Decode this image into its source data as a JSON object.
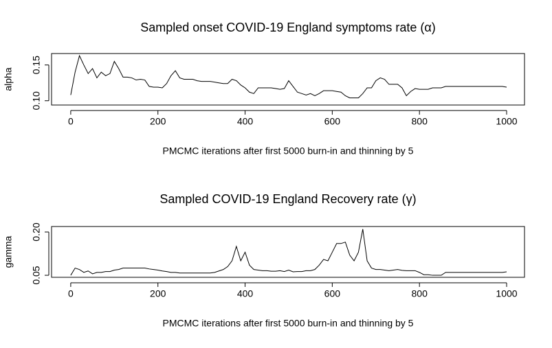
{
  "chart_data": [
    {
      "type": "line",
      "title": "Sampled onset COVID-19 England symptoms rate (α)",
      "x_label": "PMCMC iterations after first 5000 burn-in and thinning by 5",
      "y_label": "alpha",
      "x": [
        0,
        10,
        20,
        30,
        40,
        50,
        60,
        70,
        80,
        90,
        100,
        110,
        120,
        130,
        140,
        150,
        160,
        170,
        180,
        190,
        200,
        210,
        220,
        230,
        240,
        250,
        260,
        270,
        280,
        290,
        300,
        310,
        320,
        330,
        340,
        350,
        360,
        370,
        380,
        390,
        400,
        410,
        420,
        430,
        440,
        450,
        460,
        470,
        480,
        490,
        500,
        510,
        520,
        530,
        540,
        550,
        560,
        570,
        580,
        590,
        600,
        610,
        620,
        630,
        640,
        650,
        660,
        670,
        680,
        690,
        700,
        710,
        720,
        730,
        740,
        750,
        760,
        770,
        780,
        790,
        800,
        810,
        820,
        830,
        840,
        850,
        860,
        870,
        880,
        890,
        900,
        910,
        920,
        930,
        940,
        950,
        960,
        970,
        980,
        990,
        1000
      ],
      "series": [
        {
          "name": "alpha",
          "color": "#000000",
          "values": [
            0.108,
            0.14,
            0.163,
            0.15,
            0.138,
            0.145,
            0.132,
            0.14,
            0.135,
            0.138,
            0.155,
            0.145,
            0.133,
            0.133,
            0.132,
            0.129,
            0.13,
            0.129,
            0.12,
            0.119,
            0.119,
            0.118,
            0.124,
            0.135,
            0.142,
            0.132,
            0.13,
            0.13,
            0.13,
            0.128,
            0.127,
            0.127,
            0.127,
            0.126,
            0.125,
            0.124,
            0.124,
            0.13,
            0.128,
            0.122,
            0.118,
            0.112,
            0.11,
            0.118,
            0.118,
            0.118,
            0.118,
            0.117,
            0.116,
            0.117,
            0.128,
            0.12,
            0.112,
            0.11,
            0.108,
            0.11,
            0.107,
            0.11,
            0.114,
            0.114,
            0.114,
            0.113,
            0.112,
            0.107,
            0.104,
            0.104,
            0.104,
            0.11,
            0.118,
            0.118,
            0.128,
            0.132,
            0.13,
            0.123,
            0.123,
            0.123,
            0.118,
            0.107,
            0.113,
            0.117,
            0.116,
            0.116,
            0.116,
            0.118,
            0.118,
            0.118,
            0.12,
            0.12,
            0.12,
            0.12,
            0.12,
            0.12,
            0.12,
            0.12,
            0.12,
            0.12,
            0.12,
            0.12,
            0.12,
            0.12,
            0.119
          ]
        }
      ],
      "xlim": [
        -44,
        1041
      ],
      "ylim": [
        0.094,
        0.166
      ],
      "xticks": [
        0,
        200,
        400,
        600,
        800,
        1000
      ],
      "yticks": [
        {
          "value": 0.1,
          "label": "0.10"
        },
        0.15
      ]
    },
    {
      "type": "line",
      "title": "Sampled COVID-19 England Recovery rate (γ)",
      "x_label": "PMCMC iterations after first 5000 burn-in and thinning by 5",
      "y_label": "gamma",
      "x": [
        0,
        10,
        20,
        30,
        40,
        50,
        60,
        70,
        80,
        90,
        100,
        110,
        120,
        130,
        140,
        150,
        160,
        170,
        180,
        190,
        200,
        210,
        220,
        230,
        240,
        250,
        260,
        270,
        280,
        290,
        300,
        310,
        320,
        330,
        340,
        350,
        360,
        370,
        380,
        390,
        400,
        410,
        420,
        430,
        440,
        450,
        460,
        470,
        480,
        490,
        500,
        510,
        520,
        530,
        540,
        550,
        560,
        570,
        580,
        590,
        600,
        610,
        620,
        630,
        640,
        650,
        660,
        670,
        680,
        690,
        700,
        710,
        720,
        730,
        740,
        750,
        760,
        770,
        780,
        790,
        800,
        810,
        820,
        830,
        840,
        850,
        860,
        870,
        880,
        890,
        900,
        910,
        920,
        930,
        940,
        950,
        960,
        970,
        980,
        990,
        1000
      ],
      "series": [
        {
          "name": "gamma",
          "color": "#000000",
          "values": [
            0.05,
            0.075,
            0.07,
            0.06,
            0.065,
            0.055,
            0.06,
            0.06,
            0.063,
            0.063,
            0.068,
            0.07,
            0.075,
            0.075,
            0.075,
            0.075,
            0.075,
            0.075,
            0.072,
            0.07,
            0.068,
            0.065,
            0.063,
            0.06,
            0.06,
            0.058,
            0.058,
            0.058,
            0.058,
            0.058,
            0.058,
            0.058,
            0.058,
            0.06,
            0.065,
            0.07,
            0.08,
            0.1,
            0.15,
            0.1,
            0.13,
            0.085,
            0.07,
            0.068,
            0.066,
            0.066,
            0.064,
            0.064,
            0.066,
            0.063,
            0.068,
            0.062,
            0.063,
            0.063,
            0.066,
            0.066,
            0.07,
            0.085,
            0.105,
            0.1,
            0.13,
            0.16,
            0.16,
            0.165,
            0.12,
            0.1,
            0.13,
            0.21,
            0.1,
            0.075,
            0.07,
            0.07,
            0.068,
            0.066,
            0.068,
            0.07,
            0.067,
            0.066,
            0.066,
            0.066,
            0.06,
            0.052,
            0.052,
            0.05,
            0.05,
            0.05,
            0.06,
            0.06,
            0.06,
            0.06,
            0.06,
            0.06,
            0.06,
            0.06,
            0.06,
            0.06,
            0.06,
            0.06,
            0.06,
            0.06,
            0.062
          ]
        }
      ],
      "xlim": [
        -44,
        1041
      ],
      "ylim": [
        0.043,
        0.219
      ],
      "xticks": [
        0,
        200,
        400,
        600,
        800,
        1000
      ],
      "yticks": [
        0.05,
        {
          "value": 0.2,
          "label": "0.20"
        }
      ]
    }
  ]
}
